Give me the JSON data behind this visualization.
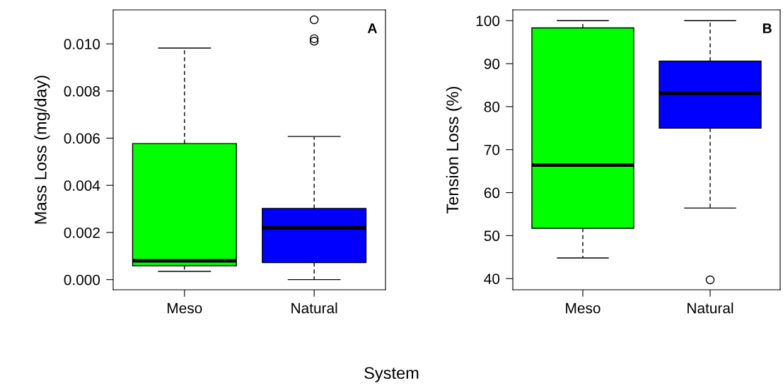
{
  "chart_data": [
    {
      "type": "box",
      "ylabel": "Mass Loss (mg/day)",
      "xlabel": "System",
      "annotations": [
        "A"
      ],
      "categories": [
        "Meso",
        "Natural"
      ],
      "colors": [
        "#00ff00",
        "#0000ff"
      ],
      "boxes": [
        {
          "low": 0.00035,
          "q1": 0.00059,
          "median": 0.0008,
          "q3": 0.00577,
          "high": 0.00982
        },
        {
          "low": 0.0,
          "q1": 0.00072,
          "median": 0.0022,
          "q3": 0.00302,
          "high": 0.00607,
          "outliers": [
            0.01102,
            0.01022,
            0.01011
          ]
        }
      ],
      "ylim": [
        -0.00043,
        0.01144
      ],
      "yticks": [
        {
          "value": 0,
          "label": "0.000"
        },
        {
          "value": 0.002,
          "label": "0.002"
        },
        {
          "value": 0.004,
          "label": "0.004"
        },
        {
          "value": 0.006,
          "label": "0.006"
        },
        {
          "value": 0.008,
          "label": "0.008"
        },
        {
          "value": 0.01,
          "label": "0.010"
        }
      ],
      "grid": false
    },
    {
      "type": "box",
      "ylabel": "Tension Loss (%)",
      "annotations": [
        "B"
      ],
      "categories": [
        "Meso",
        "Natural"
      ],
      "colors": [
        "#00ff00",
        "#0000ff"
      ],
      "boxes": [
        {
          "low": 44.8,
          "q1": 51.7,
          "median": 66.4,
          "q3": 98.3,
          "high": 100
        },
        {
          "low": 56.4,
          "q1": 75.0,
          "median": 83.1,
          "q3": 90.6,
          "high": 100,
          "outliers": [
            39.7
          ]
        }
      ],
      "ylim": [
        37.4,
        102.5
      ],
      "yticks": [
        40,
        50,
        60,
        70,
        80,
        90,
        100
      ],
      "grid": false
    }
  ]
}
